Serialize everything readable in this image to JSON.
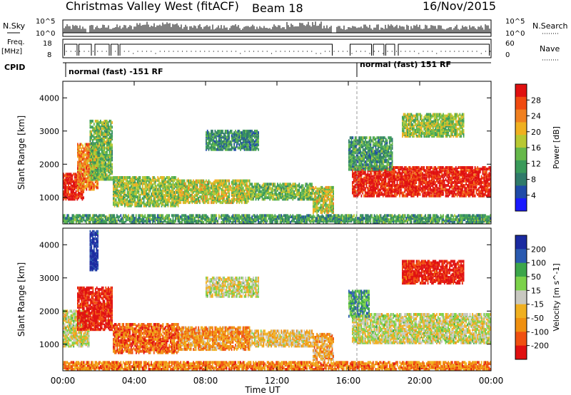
{
  "header": {
    "title": "Christmas Valley West (fitACF)",
    "beam": "Beam 18",
    "date": "16/Nov/2015"
  },
  "sky_strip": {
    "left_label": "N.Sky",
    "right_label": "N.Search",
    "ticks_left": [
      "10^5",
      "10^0"
    ],
    "ticks_right": [
      "10^5",
      "10^0"
    ]
  },
  "freq_strip": {
    "left_label_1": "Freq.",
    "left_label_2": "[MHz]",
    "right_label": "Nave",
    "ticks_left": [
      "18",
      "8"
    ],
    "ticks_right": [
      "60",
      "0"
    ]
  },
  "cpid": {
    "label": "CPID",
    "segment_1": "normal (fast) -151 RF",
    "segment_2": "normal (fast) 151 RF"
  },
  "colors": {
    "power_scale": [
      "#1a1aff",
      "#1f4aa8",
      "#2f7a6a",
      "#3a9a5a",
      "#66b84a",
      "#b8c832",
      "#f0b020",
      "#f08020",
      "#f04a10",
      "#e01010"
    ],
    "velocity_scale": [
      "#1a2aa0",
      "#2a5ab0",
      "#3ca64a",
      "#7cd24a",
      "#c8c8c0",
      "#f0b020",
      "#f09010",
      "#f05010",
      "#e01010"
    ]
  },
  "chart_data": [
    {
      "type": "heatmap",
      "name": "power-panel",
      "xlabel": "",
      "ylabel": "Slant Range [km]",
      "x_ticks": [
        "00:00",
        "04:00",
        "08:00",
        "12:00",
        "16:00",
        "20:00",
        "00:00"
      ],
      "y_ticks": [
        1000,
        2000,
        3000,
        4000
      ],
      "ylim": [
        200,
        4500
      ],
      "colorbar": {
        "label": "Power [dB]",
        "ticks": [
          4,
          8,
          12,
          16,
          20,
          24,
          28
        ]
      },
      "regions": [
        {
          "t0": 0.0,
          "t1": 1.2,
          "r0": 900,
          "r1": 1700,
          "level": 0.95
        },
        {
          "t0": 0.8,
          "t1": 2.0,
          "r0": 1200,
          "r1": 2600,
          "level": 0.75
        },
        {
          "t0": 1.5,
          "t1": 2.8,
          "r0": 1500,
          "r1": 3300,
          "level": 0.45
        },
        {
          "t0": 2.8,
          "t1": 6.5,
          "r0": 700,
          "r1": 1600,
          "level": 0.5
        },
        {
          "t0": 6.5,
          "t1": 10.5,
          "r0": 800,
          "r1": 1500,
          "level": 0.55
        },
        {
          "t0": 10.5,
          "t1": 14.0,
          "r0": 900,
          "r1": 1400,
          "level": 0.45
        },
        {
          "t0": 8.0,
          "t1": 11.0,
          "r0": 2400,
          "r1": 3000,
          "level": 0.3
        },
        {
          "t0": 14.0,
          "t1": 15.2,
          "r0": 500,
          "r1": 1300,
          "level": 0.55
        },
        {
          "t0": 16.2,
          "t1": 24.0,
          "r0": 1000,
          "r1": 1900,
          "level": 0.95
        },
        {
          "t0": 16.0,
          "t1": 18.5,
          "r0": 1800,
          "r1": 2800,
          "level": 0.35
        },
        {
          "t0": 19.0,
          "t1": 22.5,
          "r0": 2800,
          "r1": 3500,
          "level": 0.5
        },
        {
          "t0": 0.0,
          "t1": 24.0,
          "r0": 200,
          "r1": 450,
          "level": 0.35
        }
      ]
    },
    {
      "type": "heatmap",
      "name": "velocity-panel",
      "xlabel": "Time UT",
      "ylabel": "Slant Range [km]",
      "x_ticks": [
        "00:00",
        "04:00",
        "08:00",
        "12:00",
        "16:00",
        "20:00",
        "00:00"
      ],
      "y_ticks": [
        1000,
        2000,
        3000,
        4000
      ],
      "ylim": [
        200,
        4500
      ],
      "colorbar": {
        "label": "Velocity [m s^-1]",
        "ticks": [
          200,
          100,
          50,
          15,
          -15,
          -50,
          -100,
          -200
        ]
      },
      "regions": [
        {
          "t0": 0.0,
          "t1": 1.5,
          "r0": 900,
          "r1": 2000,
          "level": 0.5
        },
        {
          "t0": 0.8,
          "t1": 2.8,
          "r0": 1400,
          "r1": 2700,
          "level": 0.95
        },
        {
          "t0": 1.5,
          "t1": 2.0,
          "r0": 3200,
          "r1": 4400,
          "level": 0.05
        },
        {
          "t0": 2.8,
          "t1": 6.5,
          "r0": 700,
          "r1": 1600,
          "level": 0.8
        },
        {
          "t0": 6.5,
          "t1": 10.5,
          "r0": 800,
          "r1": 1500,
          "level": 0.7
        },
        {
          "t0": 10.5,
          "t1": 14.0,
          "r0": 900,
          "r1": 1400,
          "level": 0.6
        },
        {
          "t0": 8.0,
          "t1": 11.0,
          "r0": 2400,
          "r1": 3000,
          "level": 0.5
        },
        {
          "t0": 14.0,
          "t1": 15.2,
          "r0": 500,
          "r1": 1300,
          "level": 0.65
        },
        {
          "t0": 16.2,
          "t1": 24.0,
          "r0": 1000,
          "r1": 1900,
          "level": 0.5
        },
        {
          "t0": 16.0,
          "t1": 17.2,
          "r0": 1800,
          "r1": 2600,
          "level": 0.3
        },
        {
          "t0": 19.0,
          "t1": 22.5,
          "r0": 2800,
          "r1": 3500,
          "level": 0.95
        },
        {
          "t0": 0.0,
          "t1": 24.0,
          "r0": 200,
          "r1": 450,
          "level": 0.75
        }
      ]
    }
  ]
}
